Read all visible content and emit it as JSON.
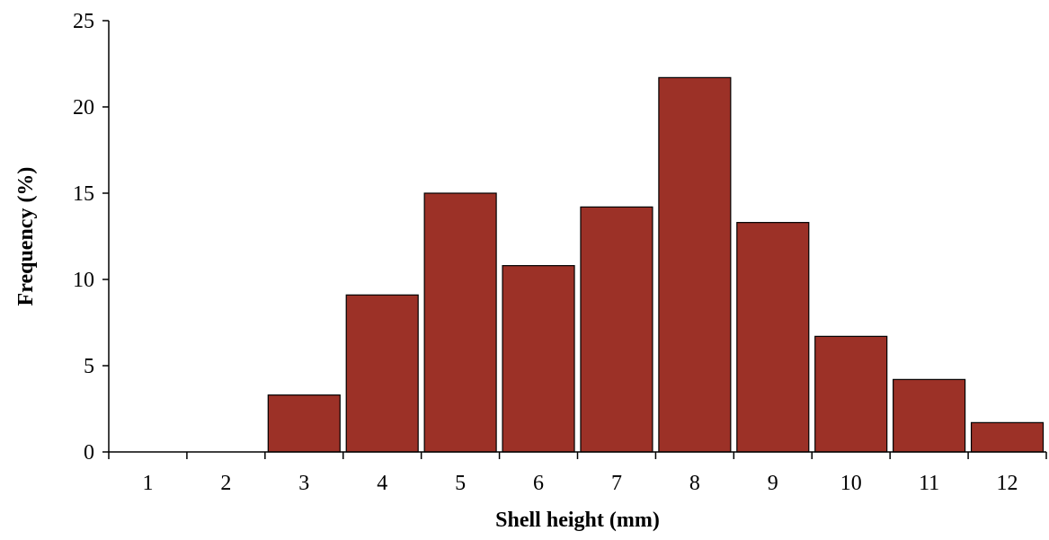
{
  "chart_data": {
    "type": "bar",
    "categories": [
      "1",
      "2",
      "3",
      "4",
      "5",
      "6",
      "7",
      "8",
      "9",
      "10",
      "11",
      "12"
    ],
    "values": [
      0,
      0,
      3.3,
      9.1,
      15.0,
      10.8,
      14.2,
      21.7,
      13.3,
      6.7,
      4.2,
      1.7
    ],
    "xlabel": "Shell height (mm)",
    "ylabel": "Frequency (%)",
    "ylim": [
      0,
      25
    ],
    "yticks": [
      "0",
      "5",
      "10",
      "15",
      "20",
      "25"
    ],
    "grid": false,
    "legend": "none",
    "bar_color": "#9C3127"
  }
}
